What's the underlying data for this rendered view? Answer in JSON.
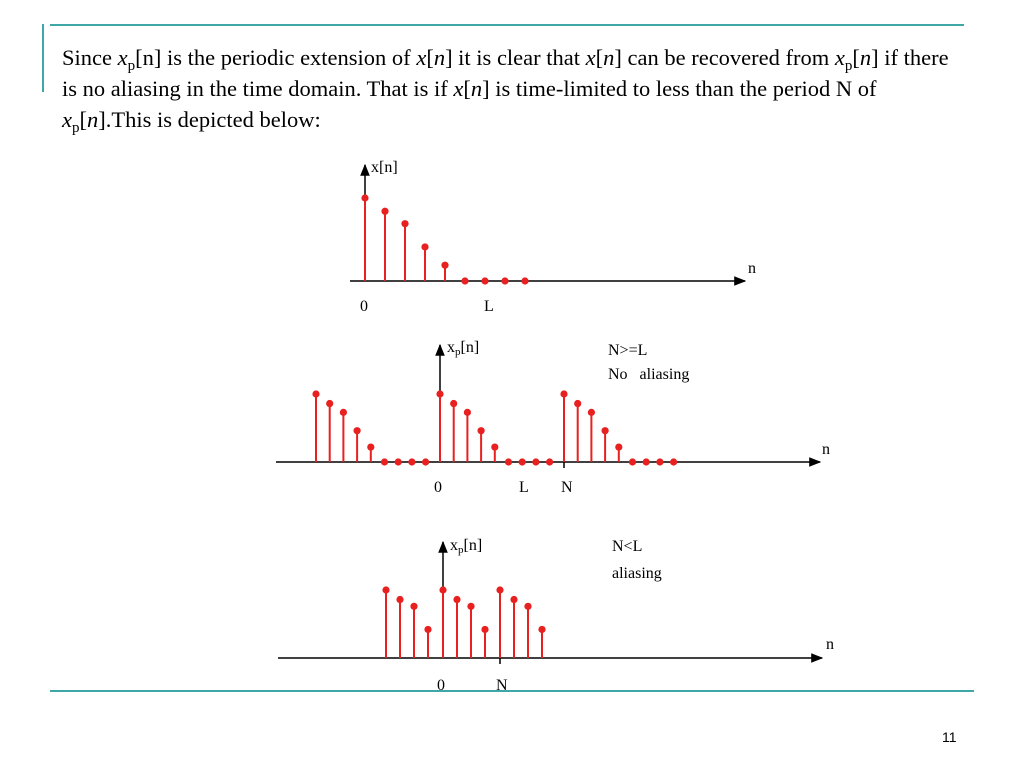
{
  "slide": {
    "paragraph": {
      "p1": "Since ",
      "p2": "x",
      "p3": "p",
      "p4": "[n] is the periodic extension of ",
      "p5": "x",
      "p6": "[",
      "p7": "n",
      "p8": "] it is clear that ",
      "p9": "x",
      "p10": "[",
      "p11": "n",
      "p12": "] can be recovered from ",
      "p13": "x",
      "p14": "p",
      "p15": "[",
      "p16": "n",
      "p17": "] if there is no aliasing in the time domain. That is if ",
      "p18": "x",
      "p19": "[",
      "p20": "n",
      "p21": "] is time-limited to less than the period N of ",
      "p22": "x",
      "p23": "p",
      "p24": "[",
      "p25": "n",
      "p26": "].This is depicted below:"
    },
    "page_number": "11",
    "accent_color": "#3ea7a8",
    "stem_color": "#e8201f"
  },
  "plots": {
    "top": {
      "ylabel": "x[n]",
      "xlabel": "n",
      "tick_zero": "0",
      "tick_l": "L",
      "samples": [
        1.0,
        0.84,
        0.69,
        0.41,
        0.19,
        0,
        0,
        0,
        0
      ]
    },
    "middle": {
      "ylabel_main": "x",
      "ylabel_sub": "p",
      "ylabel_tail": "[n]",
      "xlabel": "n",
      "tick_zero": "0",
      "tick_l": "L",
      "tick_n": "N",
      "note1": "N>=L",
      "note2": "No   aliasing",
      "samples": [
        1.0,
        0.86,
        0.73,
        0.46,
        0.22,
        0,
        0,
        0,
        0
      ]
    },
    "bottom": {
      "ylabel_main": "x",
      "ylabel_sub": "p",
      "ylabel_tail": "[n]",
      "xlabel": "n",
      "tick_zero": "0",
      "tick_n": "N",
      "note1": "N<L",
      "note2": "aliasing",
      "samples": [
        1.0,
        0.86,
        0.76,
        0.42
      ]
    }
  }
}
